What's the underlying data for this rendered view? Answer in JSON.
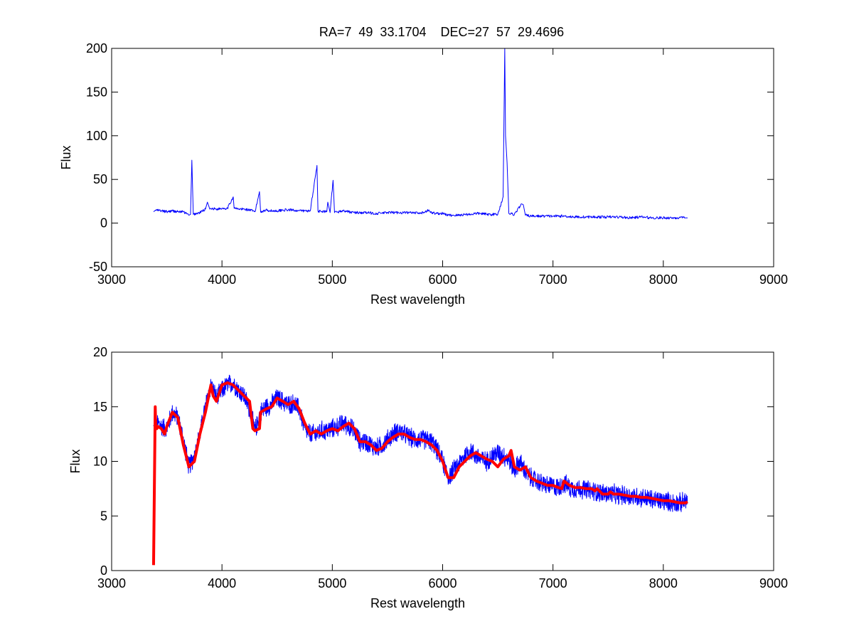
{
  "figure": {
    "title": "RA=7  49  33.1704    DEC=27  57  29.4696",
    "background": "#ffffff"
  },
  "chart_data": [
    {
      "type": "line",
      "title": "RA=7  49  33.1704    DEC=27  57  29.4696",
      "xlabel": "Rest wavelength",
      "ylabel": "Flux",
      "xlim": [
        3000,
        9000
      ],
      "ylim": [
        -50,
        200
      ],
      "xticks": [
        3000,
        4000,
        5000,
        6000,
        7000,
        8000,
        9000
      ],
      "yticks": [
        -50,
        0,
        50,
        100,
        150,
        200
      ],
      "grid": false,
      "series": [
        {
          "color": "#0000ff",
          "line_width": 1,
          "x": [
            3380,
            3400,
            3450,
            3500,
            3550,
            3600,
            3650,
            3700,
            3715,
            3727,
            3740,
            3800,
            3850,
            3868,
            3890,
            3900,
            3950,
            4000,
            4050,
            4102,
            4110,
            4150,
            4200,
            4250,
            4300,
            4340,
            4350,
            4400,
            4450,
            4500,
            4550,
            4600,
            4650,
            4700,
            4750,
            4800,
            4861,
            4870,
            4900,
            4950,
            4959,
            4980,
            5007,
            5020,
            5050,
            5100,
            5150,
            5200,
            5300,
            5400,
            5500,
            5600,
            5700,
            5800,
            5876,
            5890,
            5950,
            6000,
            6050,
            6100,
            6150,
            6200,
            6250,
            6300,
            6350,
            6400,
            6450,
            6500,
            6548,
            6563,
            6570,
            6584,
            6600,
            6650,
            6716,
            6731,
            6750,
            6800,
            6900,
            7000,
            7100,
            7200,
            7300,
            7400,
            7500,
            7600,
            7700,
            7800,
            7900,
            8000,
            8100,
            8200,
            8220
          ],
          "y": [
            13,
            15,
            14,
            13,
            14,
            13,
            13,
            9,
            10,
            72,
            10,
            12,
            16,
            24,
            16,
            17,
            16,
            17,
            17,
            30,
            17,
            16,
            16,
            15,
            13,
            36,
            13,
            15,
            14,
            14,
            15,
            15,
            15,
            14,
            14,
            14,
            66,
            14,
            13,
            13,
            24,
            12,
            49,
            12,
            13,
            14,
            13,
            12,
            12,
            11,
            12,
            12,
            12,
            11,
            15,
            12,
            11,
            11,
            9,
            9,
            9,
            10,
            10,
            11,
            11,
            10,
            10,
            10,
            30,
            200,
            100,
            69,
            11,
            10,
            22,
            21,
            9,
            8,
            8,
            8,
            8,
            7,
            7,
            7,
            7,
            7,
            6,
            7,
            6,
            6,
            6,
            6,
            6
          ]
        }
      ]
    },
    {
      "type": "line",
      "title": "",
      "xlabel": "Rest wavelength",
      "ylabel": "Flux",
      "xlim": [
        3000,
        9000
      ],
      "ylim": [
        0,
        20
      ],
      "xticks": [
        3000,
        4000,
        5000,
        6000,
        7000,
        8000,
        9000
      ],
      "yticks": [
        0,
        5,
        10,
        15,
        20
      ],
      "grid": false,
      "series": [
        {
          "color": "#0000ff",
          "line_width": 1,
          "noise": 1.0,
          "x": [
            3380,
            3420,
            3450,
            3500,
            3550,
            3600,
            3650,
            3700,
            3750,
            3800,
            3850,
            3900,
            3950,
            4000,
            4050,
            4100,
            4150,
            4200,
            4250,
            4300,
            4350,
            4400,
            4450,
            4500,
            4550,
            4600,
            4650,
            4700,
            4750,
            4800,
            4850,
            4900,
            4950,
            5000,
            5050,
            5100,
            5150,
            5200,
            5250,
            5300,
            5350,
            5400,
            5450,
            5500,
            5550,
            5600,
            5650,
            5700,
            5750,
            5800,
            5850,
            5900,
            5950,
            6000,
            6050,
            6100,
            6150,
            6200,
            6250,
            6300,
            6350,
            6400,
            6450,
            6500,
            6550,
            6600,
            6650,
            6700,
            6750,
            6800,
            6850,
            6900,
            6950,
            7000,
            7050,
            7100,
            7150,
            7200,
            7250,
            7300,
            7350,
            7400,
            7450,
            7500,
            7550,
            7600,
            7650,
            7700,
            7750,
            7800,
            7850,
            7900,
            7950,
            8000,
            8050,
            8100,
            8150,
            8200,
            8220
          ],
          "y": [
            13,
            13.5,
            13.2,
            13,
            14.5,
            14,
            12,
            9.5,
            10.5,
            12.5,
            15,
            17,
            15.8,
            16.5,
            17,
            17.2,
            16.5,
            16,
            14.8,
            12.8,
            14.5,
            15,
            15.2,
            15.8,
            15.5,
            15.2,
            15.3,
            14.8,
            13,
            12.5,
            12.5,
            12.8,
            12.8,
            13,
            13.2,
            13.5,
            13.2,
            12.8,
            11.8,
            11.8,
            11.5,
            11.2,
            11.5,
            12,
            12.5,
            12.8,
            12.5,
            12.2,
            12,
            12,
            12,
            11.8,
            11,
            10,
            8.5,
            9.2,
            9.8,
            10.5,
            11,
            10.5,
            10.2,
            10,
            10.5,
            10.8,
            10.5,
            10.2,
            9.2,
            10,
            9,
            8.5,
            8.2,
            8,
            7.8,
            7.7,
            7.6,
            8,
            7.6,
            7.5,
            7.5,
            7.4,
            7.3,
            7.2,
            7.1,
            7,
            7,
            6.9,
            6.9,
            6.8,
            6.8,
            6.7,
            6.6,
            6.5,
            6.4,
            6.4,
            6.3,
            6.2,
            6.2,
            6.3,
            6.4
          ]
        },
        {
          "color": "#ff0000",
          "line_width": 4,
          "x": [
            3380,
            3395,
            3400,
            3410,
            3420,
            3450,
            3480,
            3500,
            3550,
            3600,
            3650,
            3700,
            3750,
            3800,
            3850,
            3900,
            3920,
            3950,
            4000,
            4050,
            4100,
            4150,
            4200,
            4250,
            4280,
            4300,
            4340,
            4350,
            4400,
            4450,
            4500,
            4550,
            4600,
            4650,
            4700,
            4750,
            4800,
            4850,
            4900,
            4950,
            5000,
            5050,
            5100,
            5150,
            5200,
            5250,
            5300,
            5350,
            5400,
            5450,
            5500,
            5550,
            5600,
            5650,
            5700,
            5750,
            5800,
            5850,
            5900,
            5950,
            6000,
            6050,
            6100,
            6150,
            6200,
            6250,
            6300,
            6350,
            6400,
            6450,
            6500,
            6550,
            6600,
            6620,
            6650,
            6700,
            6750,
            6800,
            6850,
            6900,
            6950,
            7000,
            7050,
            7080,
            7100,
            7150,
            7200,
            7250,
            7300,
            7350,
            7380,
            7400,
            7450,
            7500,
            7520,
            7550,
            7600,
            7650,
            7700,
            7750,
            7800,
            7850,
            7900,
            7950,
            8000,
            8050,
            8100,
            8150,
            8200,
            8220
          ],
          "y": [
            0.5,
            15,
            13,
            13,
            13.2,
            13,
            12.5,
            13.2,
            14.5,
            14,
            11.5,
            9.5,
            10,
            12.5,
            14.5,
            17,
            16,
            15.5,
            17,
            17.2,
            17,
            16.5,
            16,
            15.5,
            13,
            12.8,
            13,
            14.5,
            14.8,
            15,
            15.8,
            15.5,
            15.2,
            15.5,
            14.8,
            13.5,
            12.5,
            12.8,
            12.5,
            12.8,
            13,
            12.8,
            13.2,
            13.5,
            13,
            11.8,
            11.8,
            11.5,
            11,
            11.2,
            11.8,
            12.2,
            12.5,
            12.5,
            12.2,
            12,
            12,
            11.8,
            11.5,
            11,
            10,
            8.5,
            8.5,
            9.5,
            10,
            10.5,
            10.8,
            10.5,
            10.2,
            10,
            9.5,
            10.2,
            10.5,
            11,
            9.5,
            9.2,
            9.5,
            8.5,
            8.2,
            8,
            7.8,
            7.8,
            7.6,
            7.5,
            8.2,
            7.8,
            7.6,
            7.6,
            7.5,
            7.5,
            7.3,
            7.5,
            7,
            7,
            7.2,
            7,
            7,
            6.9,
            6.8,
            6.8,
            6.7,
            6.7,
            6.6,
            6.5,
            6.4,
            6.4,
            6.3,
            6.2,
            6.2,
            6.3
          ]
        }
      ]
    }
  ]
}
